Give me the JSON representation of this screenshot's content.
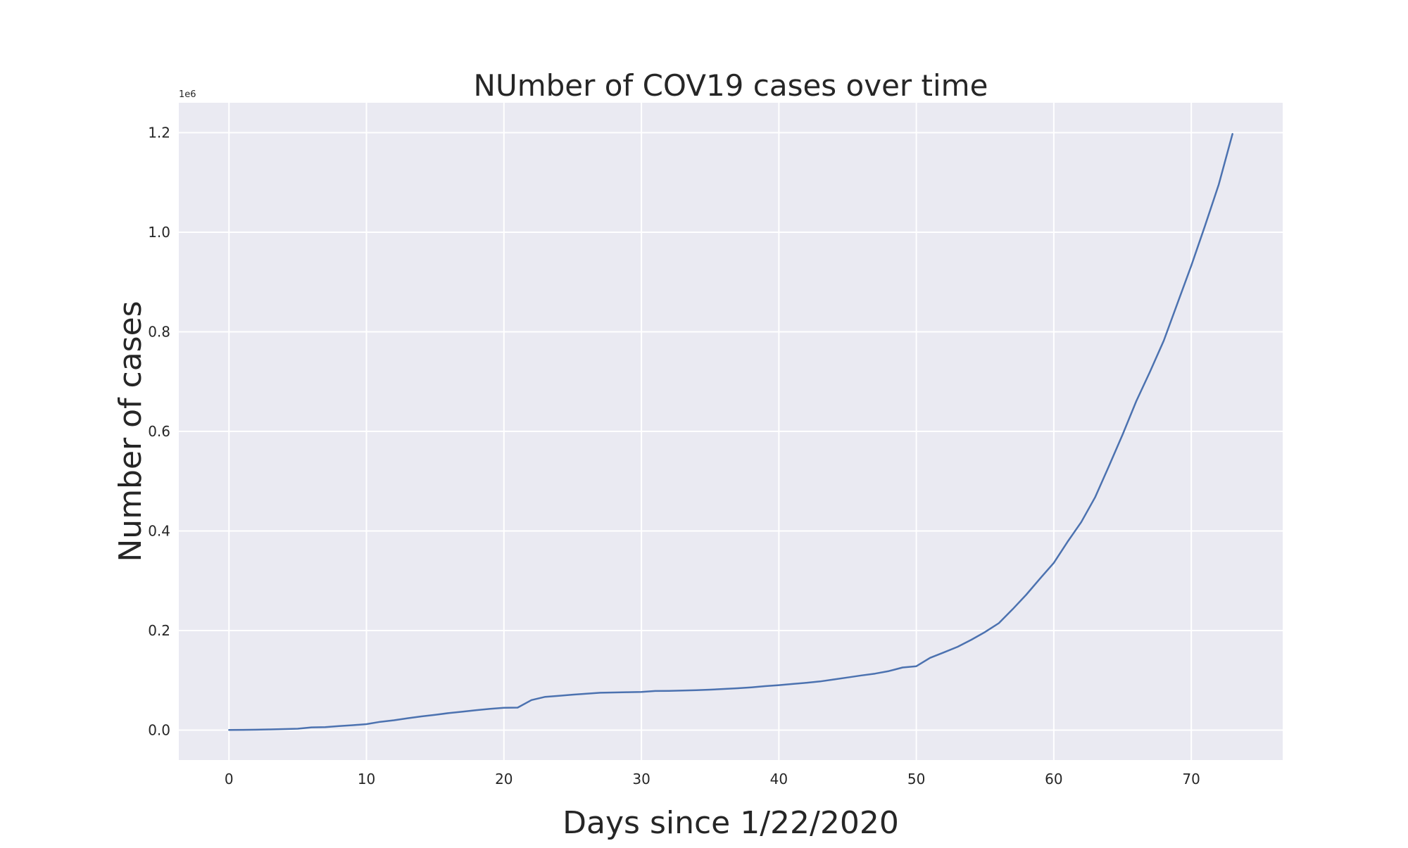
{
  "chart_data": {
    "type": "line",
    "title": "NUmber of COV19 cases over time",
    "xlabel": "Days since 1/22/2020",
    "ylabel": "Number of cases",
    "y_offset_label": "1e6",
    "xlim": [
      -3.65,
      76.65
    ],
    "ylim": [
      -0.06,
      1.26
    ],
    "y_scale_factor": 1000000,
    "x_ticks": [
      0,
      10,
      20,
      30,
      40,
      50,
      60,
      70
    ],
    "x_tick_labels": [
      "0",
      "10",
      "20",
      "30",
      "40",
      "50",
      "60",
      "70"
    ],
    "y_ticks": [
      0.0,
      0.2,
      0.4,
      0.6,
      0.8,
      1.0,
      1.2
    ],
    "y_tick_labels": [
      "0.0",
      "0.2",
      "0.4",
      "0.6",
      "0.8",
      "1.0",
      "1.2"
    ],
    "grid": true,
    "background": "#eaeaf2",
    "grid_color": "#ffffff",
    "line_color": "#4c72b0",
    "series": [
      {
        "x": [
          0,
          1,
          2,
          3,
          4,
          5,
          6,
          7,
          8,
          9,
          10,
          11,
          12,
          13,
          14,
          15,
          16,
          17,
          18,
          19,
          20,
          21,
          22,
          23,
          24,
          25,
          26,
          27,
          28,
          29,
          30,
          31,
          32,
          33,
          34,
          35,
          36,
          37,
          38,
          39,
          40,
          41,
          42,
          43,
          44,
          45,
          46,
          47,
          48,
          49,
          50,
          51,
          52,
          53,
          54,
          55,
          56,
          57,
          58,
          59,
          60,
          61,
          62,
          63,
          64,
          65,
          66,
          67,
          68,
          69,
          70,
          71,
          72,
          73
        ],
        "y": [
          0.000555,
          0.000654,
          0.000941,
          0.001434,
          0.002118,
          0.002927,
          0.005578,
          0.006166,
          0.008234,
          0.009927,
          0.012038,
          0.016787,
          0.019881,
          0.023892,
          0.027635,
          0.030794,
          0.034391,
          0.03712,
          0.04015,
          0.042762,
          0.044802,
          0.045221,
          0.060368,
          0.066885,
          0.06903,
          0.071224,
          0.073258,
          0.075136,
          0.075639,
          0.076197,
          0.076819,
          0.078572,
          0.078958,
          0.079561,
          0.080406,
          0.081388,
          0.082746,
          0.084112,
          0.086011,
          0.088369,
          0.090306,
          0.09284,
          0.09512,
          0.097886,
          0.101801,
          0.105847,
          0.109821,
          0.11359,
          0.11862,
          0.125875,
          0.128343,
          0.145193,
          0.156097,
          0.167449,
          0.181546,
          0.197142,
          0.21491,
          0.242708,
          0.272166,
          0.304524,
          0.335955,
          0.378287,
          0.417966,
          0.467594,
          0.529591,
          0.593291,
          0.660693,
          0.720117,
          0.782365,
          0.857487,
          0.932605,
          1.013157,
          1.095917,
          1.197405
        ]
      }
    ]
  }
}
